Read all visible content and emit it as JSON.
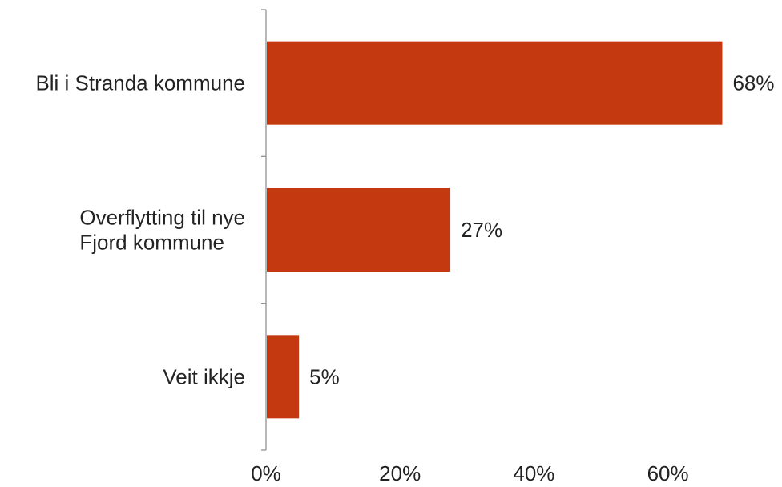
{
  "chart_data": {
    "type": "bar",
    "orientation": "horizontal",
    "categories": [
      [
        "Bli i Stranda kommune"
      ],
      [
        "Overflytting til nye",
        "Fjord kommune"
      ],
      [
        "Veit ikkje"
      ]
    ],
    "values": [
      68,
      27.4,
      4.8
    ],
    "value_labels": [
      "68%",
      "27%",
      "5%"
    ],
    "xticks": [
      "0%",
      "20%",
      "40%",
      "60%"
    ],
    "xlim": [
      0,
      70
    ],
    "bar_color": "#c4390f",
    "grid": false,
    "title": "",
    "xlabel": "",
    "ylabel": ""
  }
}
